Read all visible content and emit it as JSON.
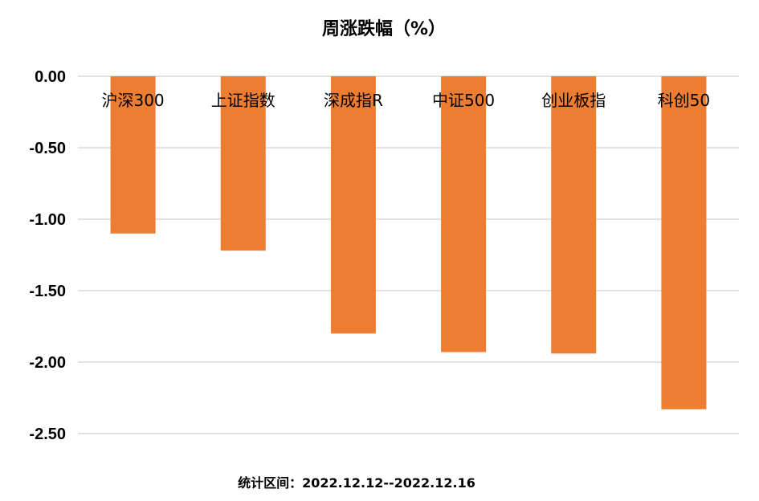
{
  "chart_data": {
    "type": "bar",
    "title": "周涨跌幅（%）",
    "categories": [
      "沪深300",
      "上证指数",
      "深成指R",
      "中证500",
      "创业板指",
      "科创50"
    ],
    "values": [
      -1.1,
      -1.22,
      -1.8,
      -1.93,
      -1.94,
      -2.33
    ],
    "ylim": [
      -2.5,
      0
    ],
    "yticks": [
      "0.00",
      "-0.50",
      "-1.00",
      "-1.50",
      "-2.00",
      "-2.50"
    ],
    "ytick_values": [
      0,
      -0.5,
      -1.0,
      -1.5,
      -2.0,
      -2.5
    ],
    "grid": true,
    "bar_color": "#ED7D31",
    "grid_color": "#D9D9D9",
    "footer": "统计区间：2022.12.12--2022.12.16"
  }
}
